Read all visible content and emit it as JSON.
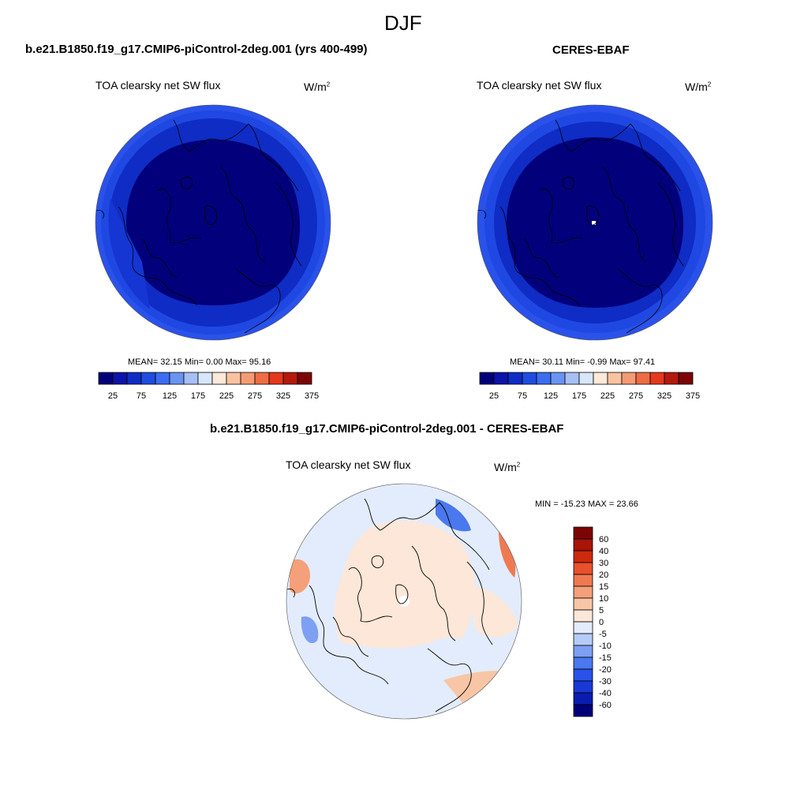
{
  "page_title": "DJF",
  "colors": {
    "seq_palette": [
      "#02007a",
      "#0a14a8",
      "#0f2cc4",
      "#1f4ce0",
      "#3c6cf0",
      "#6a94f2",
      "#a6c0f5",
      "#d8e6fb",
      "#fde9d8",
      "#f9c3a2",
      "#f59b74",
      "#f06c42",
      "#e6381a",
      "#b31a0c",
      "#7c0505"
    ],
    "diff_palette": [
      "#02007a",
      "#0a1cb0",
      "#1a38d6",
      "#2a52ea",
      "#4a78ee",
      "#7ea0f3",
      "#b6ccf8",
      "#e3ecfd",
      "#fde7d8",
      "#f8c6a6",
      "#f4a07a",
      "#ee7a52",
      "#e8502e",
      "#cc2a0c",
      "#a81408",
      "#7c0404"
    ],
    "land_line": "#000000"
  },
  "top_left": {
    "title": "b.e21.B1850.f19_g17.CMIP6-piControl-2deg.001 (yrs 400-499)",
    "variable": "TOA clearsky net SW flux",
    "units_base": "W/m",
    "units_exp": "2",
    "stats": "MEAN=  32.15  Min=   0.00  Max=  95.16"
  },
  "top_right": {
    "title": "CERES-EBAF",
    "variable": "TOA clearsky net SW flux",
    "units_base": "W/m",
    "units_exp": "2",
    "stats": "MEAN=  30.11  Min=  -0.99  Max=  97.41"
  },
  "bottom": {
    "title": "b.e21.B1850.f19_g17.CMIP6-piControl-2deg.001 - CERES-EBAF",
    "variable": "TOA clearsky net SW flux",
    "units_base": "W/m",
    "units_exp": "2",
    "minmax": "MIN = -15.23 MAX =  23.66"
  },
  "chart_data": [
    {
      "type": "heatmap",
      "projection": "polar-stereographic-north",
      "title": "b.e21.B1850.f19_g17.CMIP6-piControl-2deg.001 (yrs 400-499)",
      "variable": "TOA clearsky net SW flux",
      "units": "W/m2",
      "mean": 32.15,
      "min": 0.0,
      "max": 95.16,
      "colorbar_levels": [
        0,
        25,
        50,
        75,
        100,
        125,
        150,
        175,
        200,
        225,
        250,
        275,
        300,
        325,
        350,
        375
      ],
      "colorbar_labels": [
        "25",
        "75",
        "125",
        "175",
        "225",
        "275",
        "325",
        "375"
      ],
      "legend_position": "bottom"
    },
    {
      "type": "heatmap",
      "projection": "polar-stereographic-north",
      "title": "CERES-EBAF",
      "variable": "TOA clearsky net SW flux",
      "units": "W/m2",
      "mean": 30.11,
      "min": -0.99,
      "max": 97.41,
      "colorbar_levels": [
        0,
        25,
        50,
        75,
        100,
        125,
        150,
        175,
        200,
        225,
        250,
        275,
        300,
        325,
        350,
        375
      ],
      "colorbar_labels": [
        "25",
        "75",
        "125",
        "175",
        "225",
        "275",
        "325",
        "375"
      ],
      "legend_position": "bottom"
    },
    {
      "type": "heatmap",
      "projection": "polar-stereographic-north",
      "title": "b.e21.B1850.f19_g17.CMIP6-piControl-2deg.001 - CERES-EBAF",
      "variable": "TOA clearsky net SW flux",
      "units": "W/m2",
      "min": -15.23,
      "max": 23.66,
      "colorbar_labels": [
        "60",
        "40",
        "30",
        "20",
        "15",
        "10",
        "5",
        "0",
        "-5",
        "-10",
        "-15",
        "-20",
        "-30",
        "-40",
        "-60"
      ],
      "legend_position": "right"
    }
  ]
}
